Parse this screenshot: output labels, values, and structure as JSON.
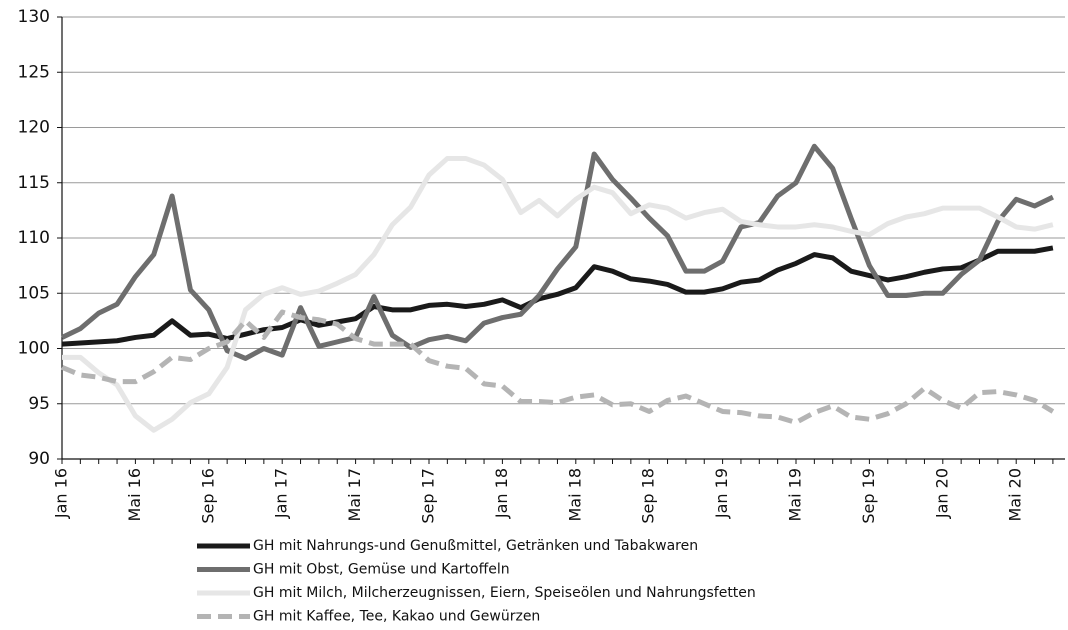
{
  "chart_data": {
    "type": "line",
    "categories": [
      "Jan 16",
      null,
      null,
      null,
      "Mai 16",
      null,
      null,
      null,
      "Sep 16",
      null,
      null,
      null,
      "Jan 17",
      null,
      null,
      null,
      "Mai 17",
      null,
      null,
      null,
      "Sep 17",
      null,
      null,
      null,
      "Jan 18",
      null,
      null,
      null,
      "Mai 18",
      null,
      null,
      null,
      "Sep 18",
      null,
      null,
      null,
      "Jan 19",
      null,
      null,
      null,
      "Mai 19",
      null,
      null,
      null,
      "Sep 19",
      null,
      null,
      null,
      "Jan 20",
      null,
      null,
      null,
      "Mai 20",
      null,
      null
    ],
    "ylim": [
      90,
      130
    ],
    "yticks": [
      90,
      95,
      100,
      105,
      110,
      115,
      120,
      125,
      130
    ],
    "grid": true,
    "series": [
      {
        "name": "GH mit Nahrungs-und Genußmittel, Getränken und Tabakwaren",
        "color": "#1a1a1a",
        "style": "solid",
        "values": [
          100.4,
          100.5,
          100.6,
          100.7,
          101.0,
          101.2,
          102.5,
          101.2,
          101.3,
          100.9,
          101.3,
          101.7,
          101.9,
          102.6,
          102.1,
          102.4,
          102.7,
          103.8,
          103.5,
          103.5,
          103.9,
          104.0,
          103.8,
          104.0,
          104.4,
          103.7,
          104.5,
          104.9,
          105.5,
          107.4,
          107.0,
          106.3,
          106.1,
          105.8,
          105.1,
          105.1,
          105.4,
          106.0,
          106.2,
          107.1,
          107.7,
          108.5,
          108.2,
          107.0,
          106.6,
          106.2,
          106.5,
          106.9,
          107.2,
          107.3,
          108.0,
          108.8,
          108.8,
          108.8,
          109.1
        ]
      },
      {
        "name": "GH mit Obst, Gemüse und Kartoffeln",
        "color": "#6e6e6e",
        "style": "solid",
        "values": [
          101.0,
          101.8,
          103.2,
          104.0,
          106.5,
          108.5,
          113.8,
          105.3,
          103.5,
          99.8,
          99.1,
          100.0,
          99.4,
          103.7,
          100.2,
          100.6,
          101.0,
          104.7,
          101.2,
          100.1,
          100.8,
          101.1,
          100.7,
          102.3,
          102.8,
          103.1,
          104.8,
          107.2,
          109.2,
          117.6,
          115.3,
          113.6,
          111.8,
          110.2,
          107.0,
          107.0,
          107.9,
          111.0,
          111.4,
          113.8,
          115.0,
          118.3,
          116.3,
          111.8,
          107.5,
          104.8,
          104.8,
          105.0,
          105.0,
          106.7,
          108.0,
          111.5,
          113.5,
          112.9,
          113.7
        ]
      },
      {
        "name": "GH mit Milch, Milcherzeugnissen, Eiern, Speiseölen und Nahrungsfetten",
        "color": "#e6e6e6",
        "style": "solid",
        "values": [
          99.2,
          99.2,
          97.8,
          96.7,
          93.9,
          92.6,
          93.6,
          95.1,
          95.9,
          98.3,
          103.5,
          104.9,
          105.5,
          104.9,
          105.2,
          105.9,
          106.7,
          108.5,
          111.2,
          112.8,
          115.7,
          117.2,
          117.2,
          116.6,
          115.3,
          112.3,
          113.4,
          112.0,
          113.5,
          114.6,
          114.1,
          112.2,
          113.0,
          112.7,
          111.8,
          112.3,
          112.6,
          111.5,
          111.2,
          111.0,
          111.0,
          111.2,
          111.0,
          110.6,
          110.3,
          111.3,
          111.9,
          112.2,
          112.7,
          112.7,
          112.7,
          111.9,
          111.0,
          110.8,
          111.2
        ]
      },
      {
        "name": "GH mit Kaffee, Tee, Kakao und Gewürzen",
        "color": "#b4b4b4",
        "style": "dashed",
        "values": [
          98.3,
          97.6,
          97.4,
          97.0,
          97.0,
          97.9,
          99.2,
          99.0,
          100.0,
          100.6,
          102.5,
          101.0,
          103.3,
          102.8,
          102.6,
          102.2,
          100.9,
          100.4,
          100.4,
          100.4,
          98.9,
          98.4,
          98.2,
          96.8,
          96.6,
          95.2,
          95.2,
          95.1,
          95.6,
          95.8,
          94.9,
          95.0,
          94.3,
          95.3,
          95.7,
          95.0,
          94.3,
          94.2,
          93.9,
          93.8,
          93.3,
          94.2,
          94.8,
          93.8,
          93.6,
          94.1,
          95.0,
          96.4,
          95.3,
          94.6,
          96.0,
          96.1,
          95.8,
          95.3,
          94.3
        ]
      }
    ]
  }
}
